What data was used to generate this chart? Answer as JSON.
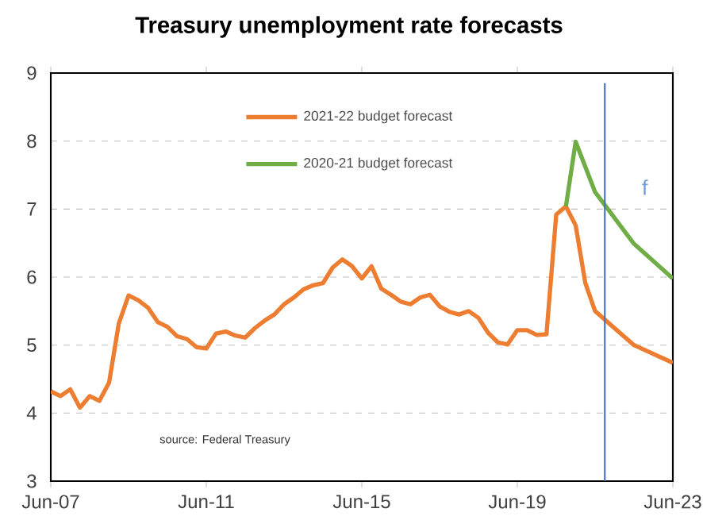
{
  "chart_data": {
    "type": "line",
    "title": "Treasury unemployment rate forecasts",
    "series": [
      {
        "name": "2021-22 budget forecast",
        "color": "#ed7d31",
        "x": [
          "2007-06",
          "2007-09",
          "2007-12",
          "2008-03",
          "2008-06",
          "2008-09",
          "2008-12",
          "2009-03",
          "2009-06",
          "2009-09",
          "2009-12",
          "2010-03",
          "2010-06",
          "2010-09",
          "2010-12",
          "2011-03",
          "2011-06",
          "2011-09",
          "2011-12",
          "2012-03",
          "2012-06",
          "2012-09",
          "2012-12",
          "2013-03",
          "2013-06",
          "2013-09",
          "2013-12",
          "2014-03",
          "2014-06",
          "2014-09",
          "2014-12",
          "2015-03",
          "2015-06",
          "2015-09",
          "2015-12",
          "2016-03",
          "2016-06",
          "2016-09",
          "2016-12",
          "2017-03",
          "2017-06",
          "2017-09",
          "2017-12",
          "2018-03",
          "2018-06",
          "2018-09",
          "2018-12",
          "2019-03",
          "2019-06",
          "2019-09",
          "2019-12",
          "2020-03",
          "2020-06",
          "2020-09",
          "2020-12",
          "2021-03",
          "2021-06",
          "2022-06",
          "2023-06"
        ],
        "values": [
          4.32,
          4.25,
          4.35,
          4.08,
          4.25,
          4.18,
          4.45,
          5.32,
          5.73,
          5.66,
          5.55,
          5.34,
          5.27,
          5.13,
          5.09,
          4.97,
          4.95,
          5.17,
          5.2,
          5.14,
          5.11,
          5.25,
          5.36,
          5.45,
          5.6,
          5.7,
          5.82,
          5.88,
          5.91,
          6.14,
          6.26,
          6.16,
          5.98,
          6.16,
          5.83,
          5.74,
          5.64,
          5.6,
          5.7,
          5.74,
          5.57,
          5.49,
          5.45,
          5.5,
          5.4,
          5.18,
          5.04,
          5.01,
          5.22,
          5.22,
          5.15,
          5.16,
          6.92,
          7.04,
          6.76,
          5.91,
          5.5,
          5.0,
          4.74
        ]
      },
      {
        "name": "2020-21 budget forecast",
        "color": "#70ad47",
        "x": [
          "2020-09",
          "2020-12",
          "2021-06",
          "2022-06",
          "2023-06"
        ],
        "values": [
          7.04,
          7.99,
          7.25,
          6.49,
          5.98
        ]
      }
    ],
    "xlim": [
      "2007-06",
      "2023-06"
    ],
    "xticks": [
      {
        "value": "2007-06",
        "label": "Jun-07"
      },
      {
        "value": "2011-06",
        "label": "Jun-11"
      },
      {
        "value": "2015-06",
        "label": "Jun-15"
      },
      {
        "value": "2019-06",
        "label": "Jun-19"
      },
      {
        "value": "2023-06",
        "label": "Jun-23"
      }
    ],
    "ylim": [
      3,
      9
    ],
    "yticks": [
      3,
      4,
      5,
      6,
      7,
      8,
      9
    ],
    "grid": "y",
    "legend": "top",
    "marker": "none",
    "line_style": "solid",
    "ref_lines": [
      {
        "axis": "x",
        "value": "2021-09",
        "color": "#4472c4"
      }
    ],
    "annotations": [
      "source:  Federal Treasury",
      "f"
    ]
  }
}
